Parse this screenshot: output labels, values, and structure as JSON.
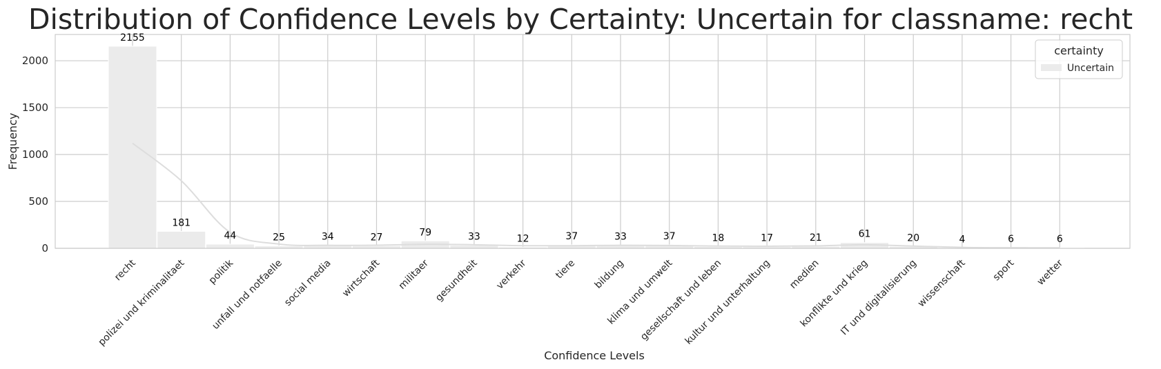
{
  "chart_data": {
    "type": "bar",
    "title": "Distribution of Confidence Levels by Certainty: Uncertain for classname: recht",
    "xlabel": "Confidence Levels",
    "ylabel": "Frequency",
    "ylim": [
      0,
      2280
    ],
    "yticks": [
      0,
      500,
      1000,
      1500,
      2000
    ],
    "grid": true,
    "legend": {
      "title": "certainty",
      "placement": "top-right",
      "entries": [
        "Uncertain"
      ]
    },
    "categories": [
      "recht",
      "polizei und kriminalitaet",
      "politik",
      "unfall und notfaelle",
      "social media",
      "wirtschaft",
      "militaer",
      "gesundheit",
      "verkehr",
      "tiere",
      "bildung",
      "klima und umwelt",
      "gesellschaft und leben",
      "kultur und unterhaltung",
      "medien",
      "konflikte und krieg",
      "IT und digitalisierung",
      "wissenschaft",
      "sport",
      "wetter"
    ],
    "series": [
      {
        "name": "Uncertain",
        "values": [
          2155,
          181,
          44,
          25,
          34,
          27,
          79,
          33,
          12,
          37,
          33,
          37,
          18,
          17,
          21,
          61,
          20,
          4,
          6,
          6
        ],
        "kde_values": [
          1120,
          720,
          170,
          45,
          32,
          33,
          42,
          38,
          28,
          28,
          32,
          30,
          24,
          22,
          26,
          38,
          24,
          10,
          6,
          5
        ]
      }
    ],
    "colors": {
      "bar": "#ebebeb",
      "kde_line": "#dddddd",
      "grid": "#cccccc",
      "axes_edge": "#cccccc",
      "text": "#262626"
    }
  }
}
